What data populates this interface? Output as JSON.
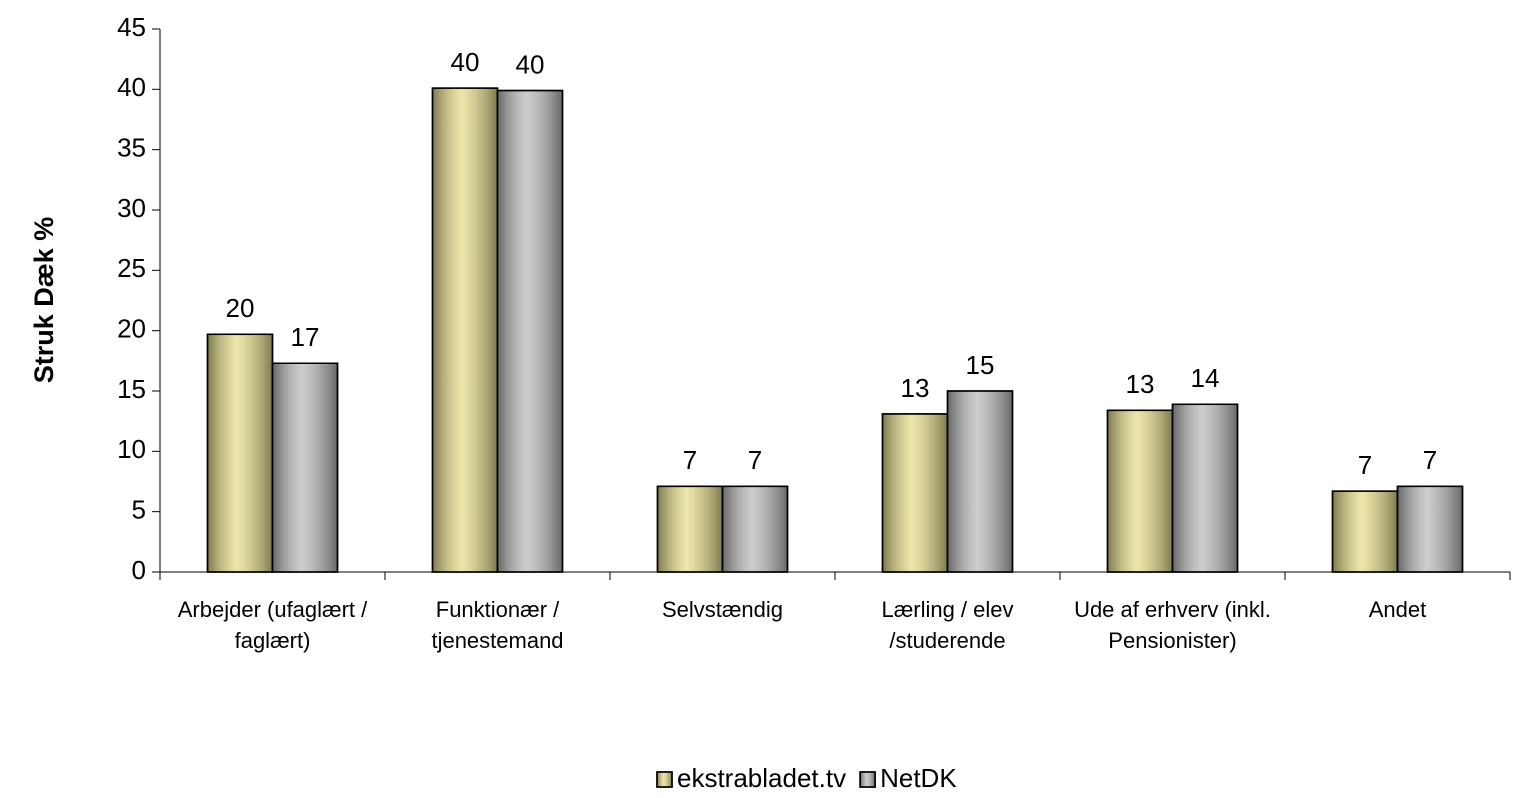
{
  "chart_data": {
    "type": "bar",
    "y_label": "Struk Dæk %",
    "categories": [
      "Arbejder (ufaglært / faglært)",
      "Funktionær / tjenestemand",
      "Selvstændig",
      "Lærling / elev /studerende",
      "Ude af erhverv (inkl. Pensionister)",
      "Andet"
    ],
    "series": [
      {
        "name": "ekstrabladet.tv",
        "color": "#e6de8c",
        "values": [
          19.7,
          40.1,
          7.1,
          13.1,
          13.4,
          6.7
        ],
        "value_labels": [
          "20",
          "40",
          "7",
          "13",
          "13",
          "7"
        ]
      },
      {
        "name": "NetDK",
        "color": "#bcbcbc",
        "values": [
          17.3,
          39.9,
          7.1,
          15.0,
          13.9,
          7.1
        ],
        "value_labels": [
          "17",
          "40",
          "7",
          "15",
          "14",
          "7"
        ]
      }
    ],
    "ylim": [
      0,
      45
    ],
    "yticks": [
      0,
      5,
      10,
      15,
      20,
      25,
      30,
      35,
      40,
      45
    ],
    "legend": "bottom"
  }
}
